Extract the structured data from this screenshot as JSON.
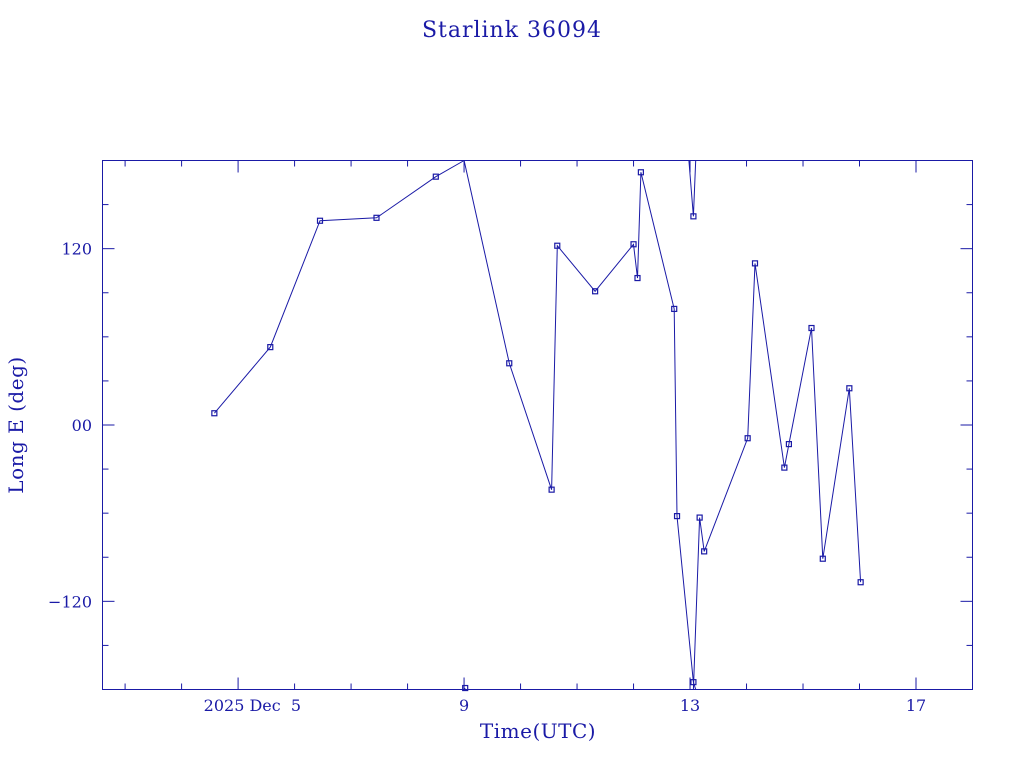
{
  "chart_data": {
    "type": "line",
    "title": "Starlink 36094",
    "xlabel": "Time(UTC)",
    "ylabel": "Long E (deg)",
    "x_unit": "days (2025 Dec)",
    "xlim": [
      2.6,
      18.0
    ],
    "ylim": [
      -180,
      180
    ],
    "x_ticks": [
      {
        "value": 5,
        "label": "2025 Dec  5"
      },
      {
        "value": 9,
        "label": "9"
      },
      {
        "value": 13,
        "label": "13"
      },
      {
        "value": 17,
        "label": "17"
      }
    ],
    "y_ticks": [
      {
        "value": 120,
        "label": "120"
      },
      {
        "value": 0,
        "label": "00"
      },
      {
        "value": -120,
        "label": "−120"
      }
    ],
    "series": [
      {
        "marker": "square",
        "color": "#1a1aa6",
        "segments": [
          [
            {
              "x": 4.58,
              "y": 8
            },
            {
              "x": 5.57,
              "y": 53
            },
            {
              "x": 6.45,
              "y": 139
            },
            {
              "x": 7.45,
              "y": 141
            },
            {
              "x": 8.5,
              "y": 169
            },
            {
              "x": 9.0,
              "y": 180
            }
          ],
          [
            {
              "x": 9.0,
              "y": -180
            },
            {
              "x": 9.02,
              "y": -179
            }
          ],
          [
            {
              "x": 9.0,
              "y": 180
            },
            {
              "x": 9.8,
              "y": 42
            },
            {
              "x": 10.55,
              "y": -44
            },
            {
              "x": 10.65,
              "y": 122
            },
            {
              "x": 11.32,
              "y": 91
            },
            {
              "x": 12.0,
              "y": 123
            },
            {
              "x": 12.07,
              "y": 100
            },
            {
              "x": 12.13,
              "y": 172
            },
            {
              "x": 12.72,
              "y": 79
            },
            {
              "x": 12.77,
              "y": -62
            },
            {
              "x": 13.06,
              "y": -175
            },
            {
              "x": 13.1,
              "y": -180
            }
          ],
          [
            {
              "x": 12.98,
              "y": 180
            },
            {
              "x": 13.06,
              "y": 142
            },
            {
              "x": 13.1,
              "y": 180
            }
          ],
          [
            {
              "x": 13.06,
              "y": -180
            },
            {
              "x": 13.17,
              "y": -63
            },
            {
              "x": 13.25,
              "y": -86
            },
            {
              "x": 14.02,
              "y": -9
            },
            {
              "x": 14.15,
              "y": 110
            },
            {
              "x": 14.67,
              "y": -29
            },
            {
              "x": 14.75,
              "y": -13
            },
            {
              "x": 15.15,
              "y": 66
            },
            {
              "x": 15.35,
              "y": -91
            },
            {
              "x": 15.82,
              "y": 25
            },
            {
              "x": 16.02,
              "y": -107
            }
          ]
        ]
      }
    ],
    "grid": false,
    "legend": "none"
  }
}
